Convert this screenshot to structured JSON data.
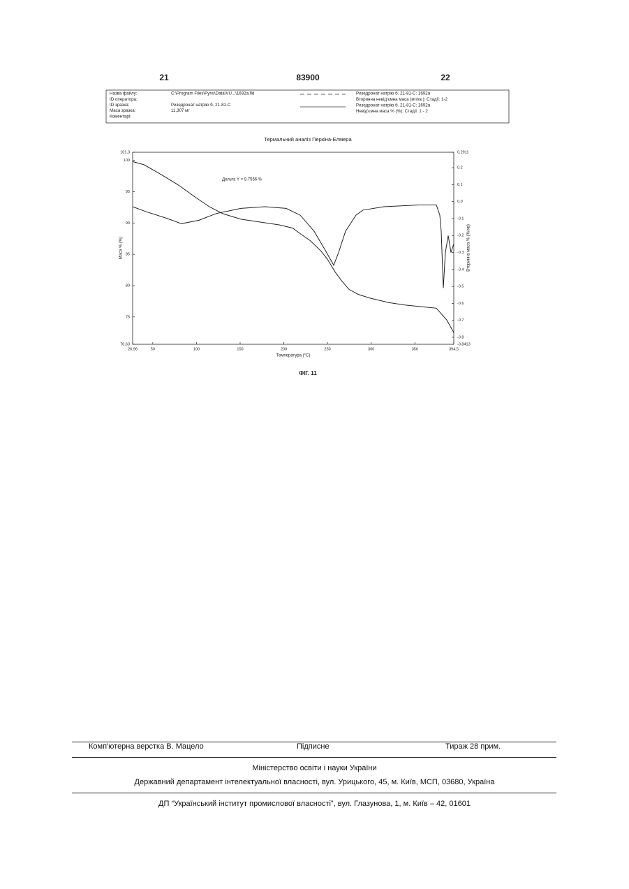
{
  "header": {
    "left": "21",
    "center": "83900",
    "right": "22"
  },
  "info": {
    "rows": [
      [
        "Назва файлу:",
        "C:\\Program Files\\Pyris\\Data\\VU...\\1692a.fld"
      ],
      [
        "ID оператора:"
      ],
      [
        "ID зразка:",
        "Ризедронат натрію б. 21-81-С"
      ],
      [
        "Маса зразка:",
        "11,307 мг"
      ],
      [
        "Коментарі:"
      ]
    ],
    "legend": [
      [
        "Ризедронат натрію б. 21-81-С: 1692а",
        "Вторинна невід'ємна маса (мг/хв.): Стадії: 1-2"
      ],
      [
        "Ризедронат натрію б. 21-81-С: 1692а",
        "Невід'ємна маса % (%): Стадії: 1 - 2"
      ]
    ]
  },
  "chart_data": {
    "type": "line",
    "title": "Термальний аналіз Перкіна-Елмера",
    "annotation": "Дельта Y = 9.7556 %",
    "x_label": "Температура (°C)",
    "y_label": "Маса % (%)",
    "y2_label": "Вторинна маса % (%/хв)",
    "xlim": [
      26.96,
      394.5
    ],
    "xticks": [
      {
        "value": 26.96,
        "label": "26,96"
      },
      50,
      100,
      150,
      200,
      250,
      300,
      350,
      {
        "value": 394.5,
        "label": "394,5"
      }
    ],
    "ylim": [
      70.63,
      101.3
    ],
    "yticks": [
      {
        "value": 70.63,
        "label": "70,63"
      },
      75,
      80,
      85,
      90,
      95,
      100,
      {
        "value": 101.3,
        "label": "101,3"
      }
    ],
    "y2lim": [
      -0.8413,
      0.2911
    ],
    "y2ticks": [
      {
        "value": -0.8413,
        "label": "-0,8413"
      },
      -0.8,
      -0.7,
      -0.6,
      -0.5,
      -0.4,
      -0.3,
      -0.2,
      -0.1,
      {
        "value": 0,
        "label": "0.0"
      },
      0.1,
      0.2,
      {
        "value": 0.2911,
        "label": "0,2911"
      }
    ],
    "series": [
      {
        "color": "#222",
        "x": [
          26.96,
          40,
          58.9,
          80,
          100,
          114.8,
          130,
          150.8,
          175,
          194.7,
          210,
          218.7,
          230,
          242.7,
          250,
          258.6,
          266,
          274.6,
          285,
          298.6,
          320,
          338.5,
          360,
          374.5,
          386.5,
          394.5
        ],
        "values": [
          99.8,
          99.3,
          97.8,
          96,
          94,
          92.6,
          91.5,
          90.6,
          90.1,
          89.7,
          89.2,
          88.3,
          87.2,
          85.5,
          84.2,
          82.2,
          80.8,
          79.4,
          78.6,
          78,
          77.3,
          76.9,
          76.6,
          76.4,
          74.5,
          72.5
        ]
      },
      {
        "color": "#222",
        "axis": "y2",
        "x": [
          26.96,
          42.9,
          66.9,
          82.9,
          102.9,
          122.8,
          150.8,
          178.8,
          202.7,
          218.7,
          234.7,
          246.7,
          257.1,
          262.7,
          270.6,
          282.6,
          290.6,
          314.6,
          354.5,
          374.5,
          378.5,
          380.1,
          382.5,
          384.9,
          388.1,
          391.3,
          394.5
        ],
        "values": [
          -0.03,
          -0.06,
          -0.1,
          -0.13,
          -0.11,
          -0.07,
          -0.04,
          -0.03,
          -0.04,
          -0.08,
          -0.175,
          -0.28,
          -0.375,
          -0.3,
          -0.175,
          -0.08,
          -0.05,
          -0.03,
          -0.02,
          -0.02,
          -0.08,
          -0.175,
          -0.51,
          -0.3,
          -0.2,
          -0.3,
          -0.25
        ]
      }
    ]
  },
  "figure_label": "ФІГ. 11",
  "footer": {
    "row": [
      "Комп'ютерна верстка В. Мацело",
      "Підписне",
      "Тираж 28 прим."
    ],
    "ministry": "Міністерство освіти і науки України",
    "department": "Державний департамент інтелектуальної власності, вул. Урицького, 45, м. Київ, МСП, 03680, Україна",
    "institute": "ДП “Український інститут промислової власності”, вул. Глазунова, 1, м. Київ – 42, 01601"
  }
}
